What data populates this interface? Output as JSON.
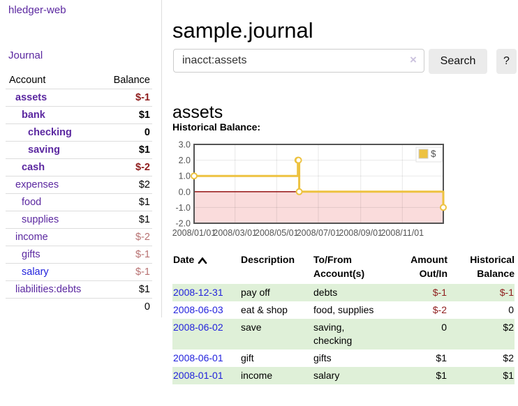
{
  "sidebar": {
    "app_title": "hledger-web",
    "journal_label": "Journal",
    "accounts_table": {
      "headers": {
        "account": "Account",
        "balance": "Balance"
      },
      "rows": [
        {
          "name": "assets",
          "depth": 0,
          "bold": true,
          "balance": "$-1",
          "balance_class": "neg"
        },
        {
          "name": "bank",
          "depth": 1,
          "bold": true,
          "balance": "$1",
          "balance_class": ""
        },
        {
          "name": "checking",
          "depth": 2,
          "bold": true,
          "balance": "0",
          "balance_class": ""
        },
        {
          "name": "saving",
          "depth": 2,
          "bold": true,
          "balance": "$1",
          "balance_class": ""
        },
        {
          "name": "cash",
          "depth": 1,
          "bold": true,
          "balance": "$-2",
          "balance_class": "neg"
        },
        {
          "name": "expenses",
          "depth": 0,
          "bold": false,
          "balance": "$2",
          "balance_class": ""
        },
        {
          "name": "food",
          "depth": 1,
          "bold": false,
          "balance": "$1",
          "balance_class": ""
        },
        {
          "name": "supplies",
          "depth": 1,
          "bold": false,
          "balance": "$1",
          "balance_class": ""
        },
        {
          "name": "income",
          "depth": 0,
          "bold": false,
          "balance": "$-2",
          "balance_class": "dim-neg"
        },
        {
          "name": "gifts",
          "depth": 1,
          "bold": false,
          "balance": "$-1",
          "balance_class": "dim-neg"
        },
        {
          "name": "salary",
          "depth": 1,
          "bold": false,
          "link_style": "blue",
          "balance": "$-1",
          "balance_class": "dim-neg"
        },
        {
          "name": "liabilities:debts",
          "depth": 0,
          "bold": false,
          "balance": "$1",
          "balance_class": ""
        }
      ],
      "total": "0"
    }
  },
  "main": {
    "page_title": "sample.journal",
    "search": {
      "value": "inacct:assets",
      "clear_icon": "×",
      "button_label": "Search",
      "help_label": "?"
    },
    "account_heading": "assets",
    "chart_heading": "Historical Balance:"
  },
  "chart_data": {
    "type": "line",
    "step": true,
    "title": "Historical Balance",
    "x_range": [
      "2008/01/01",
      "2008/12/31"
    ],
    "ylim": [
      -2.0,
      3.0
    ],
    "yticks": [
      "3.0",
      "2.0",
      "1.0",
      "0.0",
      "-1.0",
      "-2.0"
    ],
    "xticks": [
      "2008/01/01",
      "2008/03/01",
      "2008/05/01",
      "2008/07/01",
      "2008/09/01",
      "2008/11/01"
    ],
    "series": [
      {
        "name": "$",
        "points": [
          [
            "2008/01/01",
            1.0
          ],
          [
            "2008/06/01",
            2.0
          ],
          [
            "2008/06/02",
            2.0
          ],
          [
            "2008/06/03",
            0.0
          ],
          [
            "2008/12/31",
            -1.0
          ]
        ]
      }
    ],
    "legend": {
      "label": "$",
      "color": "#edc240",
      "position": "top-right"
    },
    "grid": true,
    "colors": {
      "line": "#edc240",
      "negative_region": "#fadcdc",
      "zero_line": "#8b0000",
      "border": "#545454",
      "tick_text": "#545454"
    }
  },
  "register_table": {
    "headers": {
      "date": "Date",
      "sort_icon": "chevron-up-icon",
      "description": "Description",
      "accounts": "To/From Account(s)",
      "amount": "Amount Out/In",
      "balance": "Historical Balance"
    },
    "rows": [
      {
        "date": "2008-12-31",
        "description": "pay off",
        "accounts": "debts",
        "amount": "$-1",
        "amount_neg": true,
        "balance": "$-1",
        "balance_neg": true,
        "shaded": true
      },
      {
        "date": "2008-06-03",
        "description": "eat & shop",
        "accounts": "food, supplies",
        "amount": "$-2",
        "amount_neg": true,
        "balance": "0",
        "balance_neg": false,
        "shaded": false
      },
      {
        "date": "2008-06-02",
        "description": "save",
        "accounts": "saving, checking",
        "amount": "0",
        "amount_neg": false,
        "balance": "$2",
        "balance_neg": false,
        "shaded": true
      },
      {
        "date": "2008-06-01",
        "description": "gift",
        "accounts": "gifts",
        "amount": "$1",
        "amount_neg": false,
        "balance": "$2",
        "balance_neg": false,
        "shaded": false
      },
      {
        "date": "2008-01-01",
        "description": "income",
        "accounts": "salary",
        "amount": "$1",
        "amount_neg": false,
        "balance": "$1",
        "balance_neg": false,
        "shaded": true
      }
    ]
  }
}
